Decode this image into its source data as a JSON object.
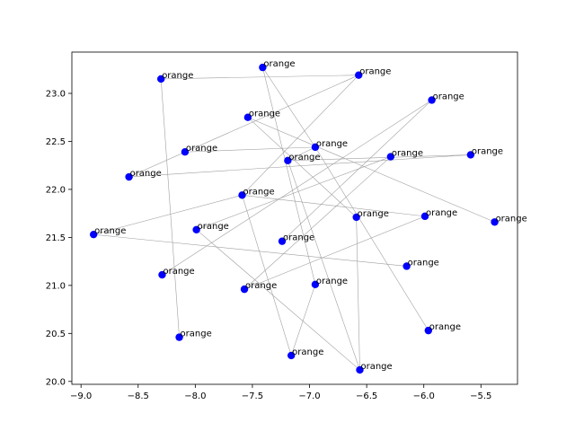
{
  "chart_data": {
    "type": "scatter",
    "title": "",
    "xlabel": "",
    "ylabel": "",
    "xlim": [
      -9.08,
      -5.18
    ],
    "ylim": [
      19.97,
      23.43
    ],
    "xticks": [
      -9.0,
      -8.5,
      -8.0,
      -7.5,
      -7.0,
      -6.5,
      -6.0,
      -5.5
    ],
    "yticks": [
      20.0,
      20.5,
      21.0,
      21.5,
      22.0,
      22.5,
      23.0
    ],
    "grid": false,
    "marker_color": "#0000ff",
    "edge_color": "#a0a0a0",
    "points": [
      {
        "x": -7.41,
        "y": 23.27,
        "label": "orange"
      },
      {
        "x": -6.57,
        "y": 23.19,
        "label": "orange"
      },
      {
        "x": -8.3,
        "y": 23.15,
        "label": "orange"
      },
      {
        "x": -5.93,
        "y": 22.93,
        "label": "orange"
      },
      {
        "x": -7.54,
        "y": 22.75,
        "label": "orange"
      },
      {
        "x": -6.95,
        "y": 22.44,
        "label": "orange"
      },
      {
        "x": -8.09,
        "y": 22.39,
        "label": "orange"
      },
      {
        "x": -6.29,
        "y": 22.34,
        "label": "orange"
      },
      {
        "x": -5.59,
        "y": 22.36,
        "label": "orange"
      },
      {
        "x": -7.19,
        "y": 22.3,
        "label": "orange"
      },
      {
        "x": -8.58,
        "y": 22.13,
        "label": "orange"
      },
      {
        "x": -7.59,
        "y": 21.94,
        "label": "orange"
      },
      {
        "x": -6.59,
        "y": 21.71,
        "label": "orange"
      },
      {
        "x": -5.99,
        "y": 21.72,
        "label": "orange"
      },
      {
        "x": -5.38,
        "y": 21.66,
        "label": "orange"
      },
      {
        "x": -7.99,
        "y": 21.58,
        "label": "orange"
      },
      {
        "x": -8.89,
        "y": 21.53,
        "label": "orange"
      },
      {
        "x": -7.24,
        "y": 21.46,
        "label": "orange"
      },
      {
        "x": -6.15,
        "y": 21.2,
        "label": "orange"
      },
      {
        "x": -8.29,
        "y": 21.11,
        "label": "orange"
      },
      {
        "x": -6.95,
        "y": 21.01,
        "label": "orange"
      },
      {
        "x": -7.57,
        "y": 20.96,
        "label": "orange"
      },
      {
        "x": -8.14,
        "y": 20.46,
        "label": "orange"
      },
      {
        "x": -5.96,
        "y": 20.53,
        "label": "orange"
      },
      {
        "x": -7.16,
        "y": 20.27,
        "label": "orange"
      },
      {
        "x": -6.56,
        "y": 20.12,
        "label": "orange"
      }
    ],
    "edges": [
      [
        0,
        20
      ],
      [
        0,
        5
      ],
      [
        1,
        2
      ],
      [
        1,
        11
      ],
      [
        1,
        10
      ],
      [
        2,
        22
      ],
      [
        3,
        17
      ],
      [
        3,
        19
      ],
      [
        4,
        14
      ],
      [
        4,
        12
      ],
      [
        5,
        6
      ],
      [
        5,
        9
      ],
      [
        5,
        23
      ],
      [
        7,
        15
      ],
      [
        7,
        21
      ],
      [
        8,
        10
      ],
      [
        8,
        9
      ],
      [
        9,
        25
      ],
      [
        11,
        13
      ],
      [
        11,
        24
      ],
      [
        12,
        25
      ],
      [
        13,
        21
      ],
      [
        15,
        25
      ],
      [
        16,
        18
      ],
      [
        16,
        11
      ],
      [
        20,
        24
      ]
    ]
  }
}
